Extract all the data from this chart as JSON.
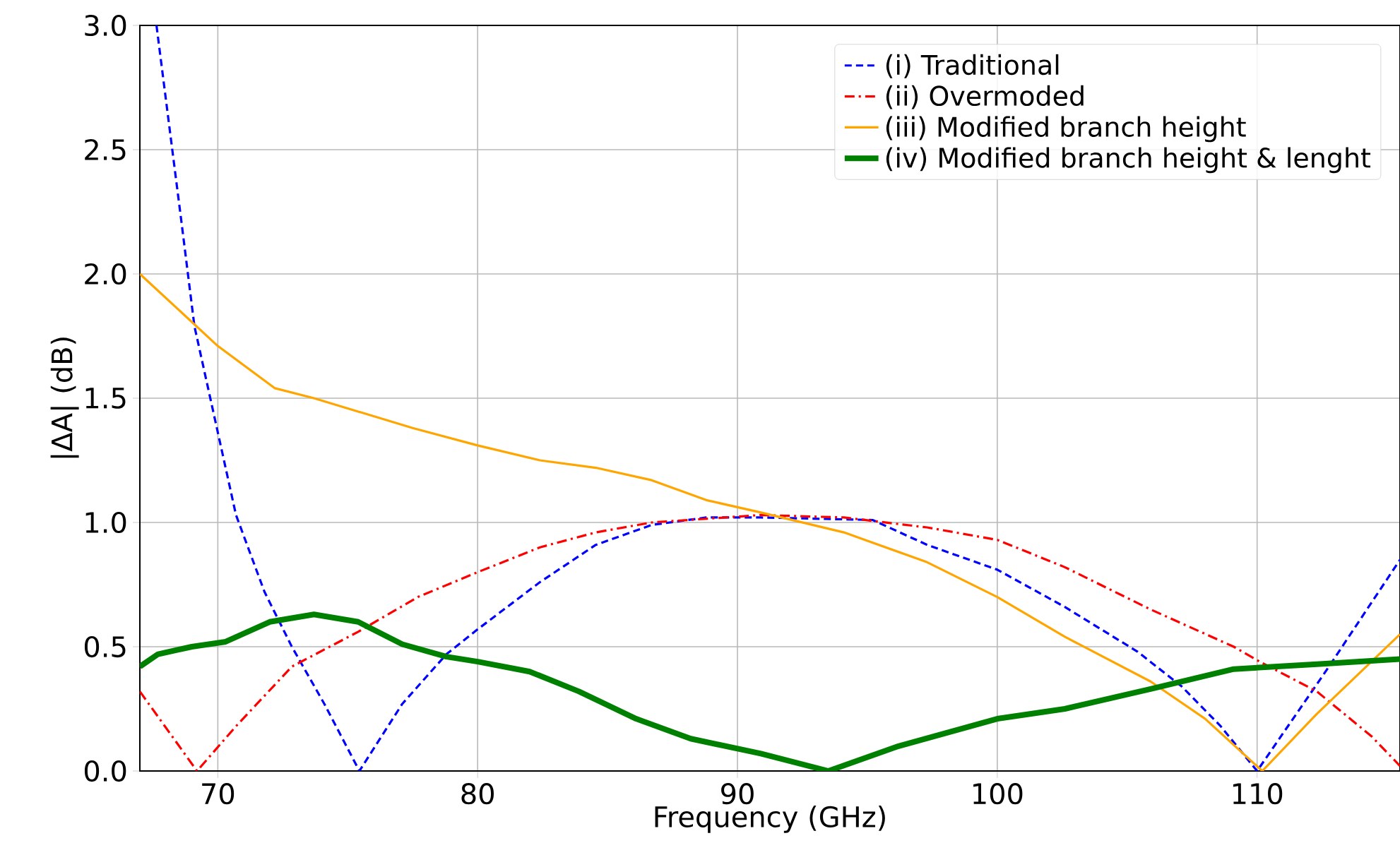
{
  "chart_data": {
    "type": "line",
    "xlabel": "Frequency (GHz)",
    "ylabel": "|ΔA| (dB)",
    "xlim": [
      67,
      115.5
    ],
    "ylim": [
      0,
      3.0
    ],
    "xticks": [
      70,
      80,
      90,
      100,
      110
    ],
    "yticks": [
      {
        "value": 0,
        "label": "0.0"
      },
      {
        "value": 0.5,
        "label": "0.5"
      },
      {
        "value": 1.0,
        "label": "1.0"
      },
      {
        "value": 1.5,
        "label": "1.5"
      },
      {
        "value": 2.0,
        "label": "2.0"
      },
      {
        "value": 2.5,
        "label": "2.5"
      },
      {
        "value": 3.0,
        "label": "3.0"
      }
    ],
    "grid": true,
    "legend": "top right",
    "marker": "none",
    "series": [
      {
        "name": "(i) Traditional",
        "color": "#0000ff",
        "line_style": "dashed",
        "x": [
          67.64,
          68.6,
          69.1,
          69.9,
          70.7,
          71.8,
          72.85,
          74.1,
          75.45,
          77.1,
          78.8,
          80,
          82.4,
          84.55,
          86.7,
          88.8,
          90.9,
          95.2,
          97.3,
          100,
          102.6,
          105.4,
          107.1,
          108.6,
          110.0,
          112.7,
          115.5
        ],
        "values": [
          3.0,
          2.21,
          1.79,
          1.41,
          1.03,
          0.72,
          0.5,
          0.27,
          0.0,
          0.27,
          0.47,
          0.57,
          0.76,
          0.91,
          0.99,
          1.02,
          1.02,
          1.01,
          0.91,
          0.81,
          0.66,
          0.48,
          0.34,
          0.18,
          0.0,
          0.41,
          0.85
        ]
      },
      {
        "name": "(ii) Overmoded",
        "color": "#ff0000",
        "line_style": "dashdot",
        "x": [
          67,
          69.2,
          70.7,
          72.85,
          75.4,
          77.7,
          80,
          82.4,
          84.55,
          86.7,
          90.9,
          94.1,
          97.3,
          100,
          102.6,
          105.9,
          109.1,
          110.1,
          112.3,
          114.4,
          115.5
        ],
        "values": [
          0.32,
          0.0,
          0.18,
          0.42,
          0.56,
          0.7,
          0.8,
          0.9,
          0.96,
          1.0,
          1.03,
          1.02,
          0.98,
          0.93,
          0.82,
          0.65,
          0.5,
          0.44,
          0.32,
          0.14,
          0.02
        ]
      },
      {
        "name": "(iii) Modified branch height",
        "color": "#ffa500",
        "line_style": "solid",
        "x": [
          67,
          70,
          72.2,
          73.7,
          75.6,
          77.5,
          80,
          82.4,
          84.55,
          86.7,
          88.8,
          90.9,
          94.1,
          97.3,
          100,
          102.6,
          105.9,
          108.0,
          110.2,
          112.3,
          115.5
        ],
        "values": [
          2.0,
          1.71,
          1.54,
          1.5,
          1.44,
          1.38,
          1.31,
          1.25,
          1.22,
          1.17,
          1.09,
          1.04,
          0.96,
          0.84,
          0.7,
          0.54,
          0.36,
          0.21,
          0.0,
          0.23,
          0.55
        ]
      },
      {
        "name": "(iv) Modified branch height & lenght",
        "color": "#008000",
        "line_style": "solid",
        "x": [
          67,
          67.7,
          69.0,
          70.3,
          72.0,
          73.7,
          75.4,
          77.1,
          78.8,
          80,
          82.0,
          83.9,
          86.1,
          88.2,
          90.9,
          93.5,
          96.2,
          100,
          102.6,
          105.9,
          109.1,
          112.3,
          115.5
        ],
        "values": [
          0.42,
          0.47,
          0.5,
          0.52,
          0.6,
          0.63,
          0.6,
          0.51,
          0.46,
          0.44,
          0.4,
          0.32,
          0.21,
          0.13,
          0.07,
          0.0,
          0.1,
          0.21,
          0.25,
          0.33,
          0.41,
          0.43,
          0.45
        ]
      }
    ]
  }
}
